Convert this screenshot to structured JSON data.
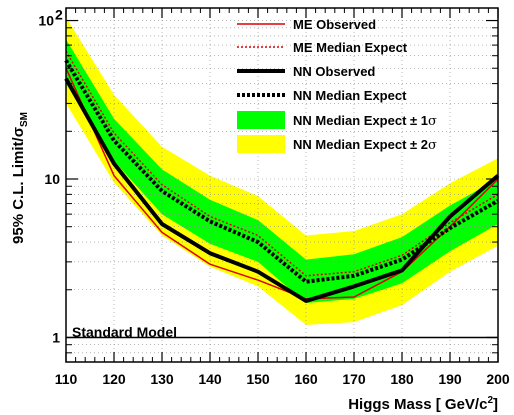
{
  "chart_data": {
    "type": "line",
    "xlabel_main": "Higgs Mass [ GeV/c",
    "xlabel_sup": "2",
    "xlabel_tail": "]",
    "ylabel_main": "95% C.L. Limit/σ",
    "ylabel_sub": "SM",
    "xlim": [
      110,
      200
    ],
    "ylim": [
      0.7,
      120
    ],
    "yscale": "log",
    "grid": true,
    "legend_position": "top-right",
    "x": [
      110,
      120,
      130,
      140,
      150,
      160,
      170,
      180,
      190,
      200
    ],
    "x_ticks": [
      110,
      120,
      130,
      140,
      150,
      160,
      170,
      180,
      190,
      200
    ],
    "x_tick_labels": [
      "110",
      "120",
      "130",
      "140",
      "150",
      "160",
      "170",
      "180",
      "190",
      "200"
    ],
    "y_major_ticks": [
      1,
      10,
      100
    ],
    "y_tick_labels": [
      "1",
      "10",
      "10"
    ],
    "y_tick_sup": [
      "",
      "",
      "2"
    ],
    "series": [
      {
        "name": "ME Observed",
        "style": "solid-thin",
        "color": "#dd0000",
        "values": [
          50,
          10.5,
          4.6,
          2.9,
          2.3,
          1.75,
          1.8,
          2.6,
          5.0,
          10.0
        ]
      },
      {
        "name": "ME Median Expect",
        "style": "dotted-thin",
        "color": "#dd0000",
        "values": [
          64,
          19.5,
          9.2,
          5.8,
          4.4,
          2.45,
          2.6,
          3.3,
          5.3,
          8.0
        ]
      },
      {
        "name": "NN Observed",
        "style": "solid-thick",
        "color": "#000000",
        "values": [
          43,
          12.5,
          5.2,
          3.4,
          2.6,
          1.7,
          2.1,
          2.65,
          5.8,
          10.5
        ]
      },
      {
        "name": "NN Median Expect",
        "style": "dotted-thick",
        "color": "#000000",
        "values": [
          56,
          17.5,
          8.4,
          5.4,
          4.0,
          2.25,
          2.45,
          3.1,
          4.9,
          7.3
        ]
      }
    ],
    "bands": [
      {
        "name": "NN Median Expect ± 2σ",
        "legend_main": "NN Median Expect ± 2",
        "color": "#ffff00",
        "lower": [
          30,
          9.5,
          4.4,
          2.8,
          2.1,
          1.2,
          1.25,
          1.6,
          2.6,
          3.8
        ],
        "upper": [
          105,
          34,
          16,
          10.5,
          7.8,
          4.4,
          4.7,
          6.0,
          9.4,
          13.5
        ]
      },
      {
        "name": "NN Median Expect ± 1σ",
        "legend_main": "NN Median Expect ± 1",
        "color": "#00ff00",
        "lower": [
          40,
          13,
          6.0,
          3.9,
          3.0,
          1.65,
          1.75,
          2.2,
          3.5,
          5.2
        ],
        "upper": [
          76,
          24,
          11.5,
          7.4,
          5.5,
          3.1,
          3.35,
          4.3,
          6.8,
          10.0
        ]
      }
    ],
    "legend_sigma": "σ",
    "reference_line": {
      "label": "Standard Model",
      "y": 1
    }
  }
}
